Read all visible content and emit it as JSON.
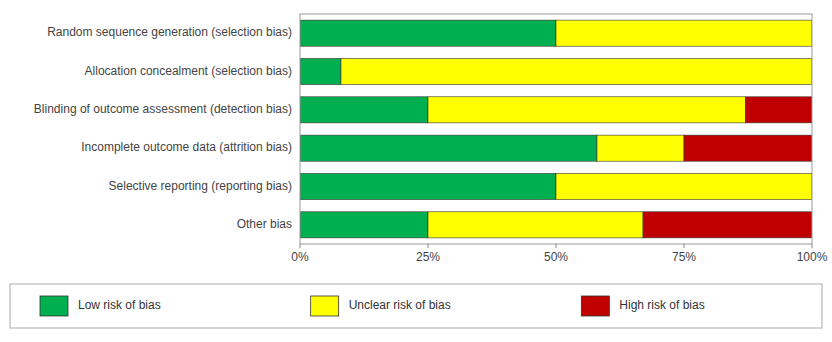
{
  "chart_data": {
    "type": "bar",
    "orientation": "horizontal",
    "stacked": true,
    "categories": [
      "Random sequence generation (selection bias)",
      "Allocation concealment (selection bias)",
      "Blinding of outcome assessment (detection bias)",
      "Incomplete outcome data (attrition bias)",
      "Selective reporting (reporting bias)",
      "Other bias"
    ],
    "series": [
      {
        "name": "Low risk of bias",
        "color": "#00b050",
        "values": [
          50,
          8,
          25,
          58,
          50,
          25
        ]
      },
      {
        "name": "Unclear risk of bias",
        "color": "#ffff00",
        "values": [
          50,
          92,
          62,
          17,
          50,
          42
        ]
      },
      {
        "name": "High risk of bias",
        "color": "#c00000",
        "values": [
          0,
          0,
          13,
          25,
          0,
          33
        ]
      }
    ],
    "xlim": [
      0,
      100
    ],
    "xticks": [
      {
        "value": 0,
        "label": "0%"
      },
      {
        "value": 25,
        "label": "25%"
      },
      {
        "value": 50,
        "label": "50%"
      },
      {
        "value": 75,
        "label": "75%"
      },
      {
        "value": 100,
        "label": "100%"
      }
    ],
    "grid": false,
    "legend": "bottom"
  }
}
